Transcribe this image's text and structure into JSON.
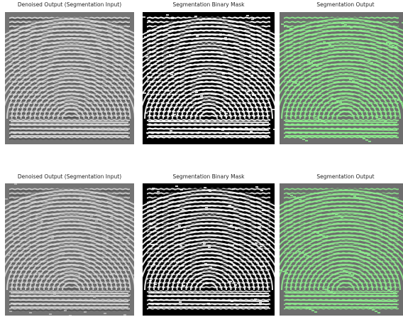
{
  "rows": [
    [
      "Denoised Output (Segmentation Input)",
      "Segmentation Binary Mask",
      "Segmentation Output"
    ],
    [
      "Denoised Output (Segmentation Input)",
      "Segmentation Binary Mask",
      "Segmentation Output"
    ]
  ]
}
